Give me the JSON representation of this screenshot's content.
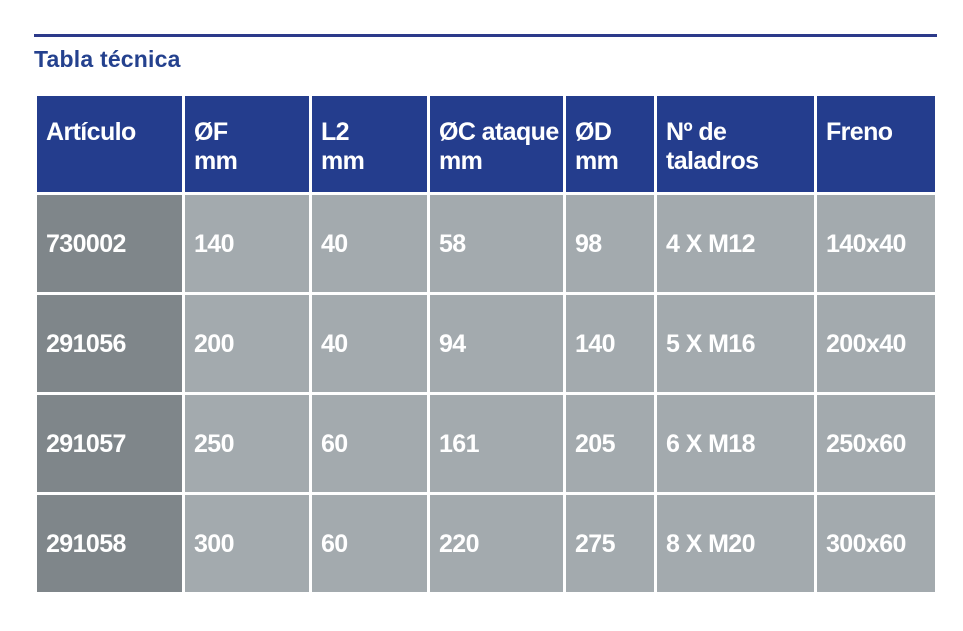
{
  "title": "Tabla técnica",
  "colors": {
    "rule": "#2c3a8a",
    "title": "#24418e",
    "header_bg": "#243d8d",
    "first_col_bg": "#7f868a",
    "cell_bg": "#a3aaae"
  },
  "table": {
    "headers": [
      {
        "line1": "Artículo",
        "line2": ""
      },
      {
        "line1": "ØF",
        "line2": "mm"
      },
      {
        "line1": "L2",
        "line2": "mm"
      },
      {
        "line1": "ØC ataque",
        "line2": "mm"
      },
      {
        "line1": "ØD",
        "line2": "mm"
      },
      {
        "line1": "Nº de",
        "line2": "taladros"
      },
      {
        "line1": "Freno",
        "line2": ""
      }
    ],
    "rows": [
      [
        "730002",
        "140",
        "40",
        "58",
        "98",
        "4 X M12",
        "140x40"
      ],
      [
        "291056",
        "200",
        "40",
        "94",
        "140",
        "5 X M16",
        "200x40"
      ],
      [
        "291057",
        "250",
        "60",
        "161",
        "205",
        "6 X M18",
        "250x60"
      ],
      [
        "291058",
        "300",
        "60",
        "220",
        "275",
        "8 X M20",
        "300x60"
      ]
    ]
  }
}
